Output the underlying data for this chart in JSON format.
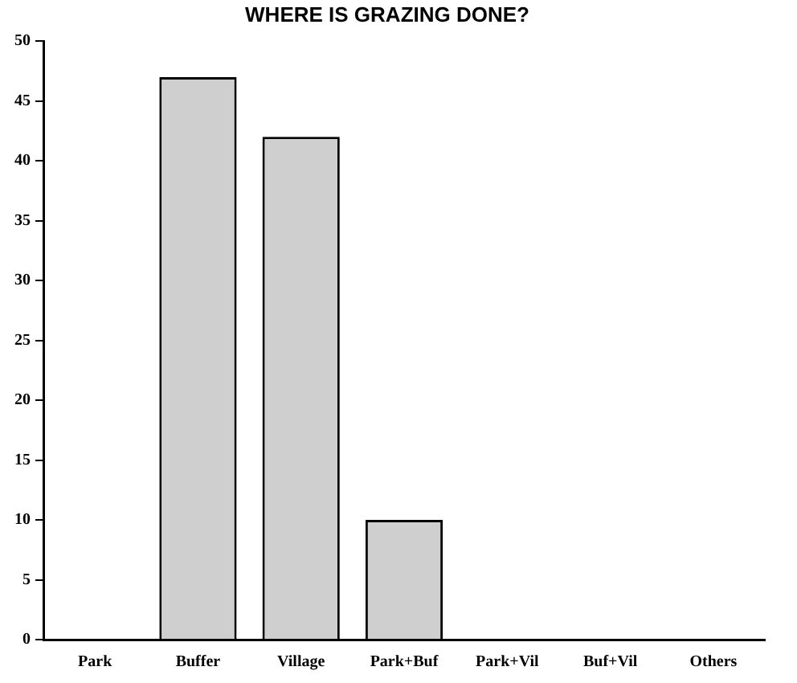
{
  "chart_data": {
    "type": "bar",
    "title": "WHERE IS GRAZING DONE?",
    "categories": [
      "Park",
      "Buffer",
      "Village",
      "Park+Buf",
      "Park+Vil",
      "Buf+Vil",
      "Others"
    ],
    "values": [
      0,
      47,
      42,
      10,
      0,
      0,
      0
    ],
    "color": "#cfcfcf",
    "ylim": [
      0,
      50
    ],
    "yticks": [
      0,
      5,
      10,
      15,
      20,
      25,
      30,
      35,
      40,
      45,
      50
    ],
    "grid": false,
    "legend": false
  }
}
